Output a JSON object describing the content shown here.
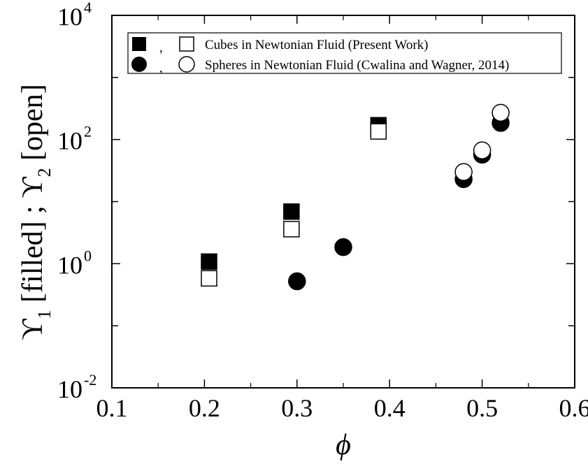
{
  "chart_data": {
    "type": "scatter",
    "xlabel": "ϕ",
    "ylabel": {
      "sym1": "ϒ",
      "sub1": "1",
      "mid": " [filled] ; ",
      "sym2": "ϒ",
      "sub2": "2",
      "end": " [open]"
    },
    "xlim": [
      0.1,
      0.6
    ],
    "ylim": [
      0.01,
      10000
    ],
    "yscale": "log",
    "grid": false,
    "legend_position": "top",
    "x_ticks": [
      {
        "value": 0.1,
        "label": "0.1"
      },
      {
        "value": 0.2,
        "label": "0.2"
      },
      {
        "value": 0.3,
        "label": "0.3"
      },
      {
        "value": 0.4,
        "label": "0.4"
      },
      {
        "value": 0.5,
        "label": "0.5"
      },
      {
        "value": 0.6,
        "label": "0.6"
      }
    ],
    "y_ticks": [
      {
        "value": 0.01,
        "base": "10",
        "exp": "-2"
      },
      {
        "value": 1,
        "base": "10",
        "exp": "0"
      },
      {
        "value": 100,
        "base": "10",
        "exp": "2"
      },
      {
        "value": 10000,
        "base": "10",
        "exp": "4"
      }
    ],
    "legend": [
      {
        "filled_marker": "square",
        "open_marker": "square",
        "separator": ",",
        "label": "Cubes in Newtonian Fluid (Present Work)"
      },
      {
        "filled_marker": "circle",
        "open_marker": "circle",
        "separator": ",",
        "label": "Spheres in Newtonian Fluid (Cwalina and Wagner, 2014)"
      }
    ],
    "series": [
      {
        "marker": "square",
        "fill": "filled",
        "color": "#000000",
        "points": [
          {
            "x": 0.205,
            "y": 1.08
          },
          {
            "x": 0.294,
            "y": 6.9
          },
          {
            "x": 0.388,
            "y": 170
          }
        ]
      },
      {
        "marker": "square",
        "fill": "open",
        "color": "#000000",
        "points": [
          {
            "x": 0.205,
            "y": 0.58
          },
          {
            "x": 0.294,
            "y": 3.6
          },
          {
            "x": 0.388,
            "y": 135
          }
        ]
      },
      {
        "marker": "circle",
        "fill": "filled",
        "color": "#000000",
        "points": [
          {
            "x": 0.3,
            "y": 0.52
          },
          {
            "x": 0.35,
            "y": 1.85
          },
          {
            "x": 0.48,
            "y": 23
          },
          {
            "x": 0.5,
            "y": 57
          },
          {
            "x": 0.52,
            "y": 185
          }
        ]
      },
      {
        "marker": "circle",
        "fill": "open",
        "color": "#000000",
        "points": [
          {
            "x": 0.48,
            "y": 30
          },
          {
            "x": 0.5,
            "y": 67
          },
          {
            "x": 0.52,
            "y": 270
          }
        ]
      }
    ]
  }
}
